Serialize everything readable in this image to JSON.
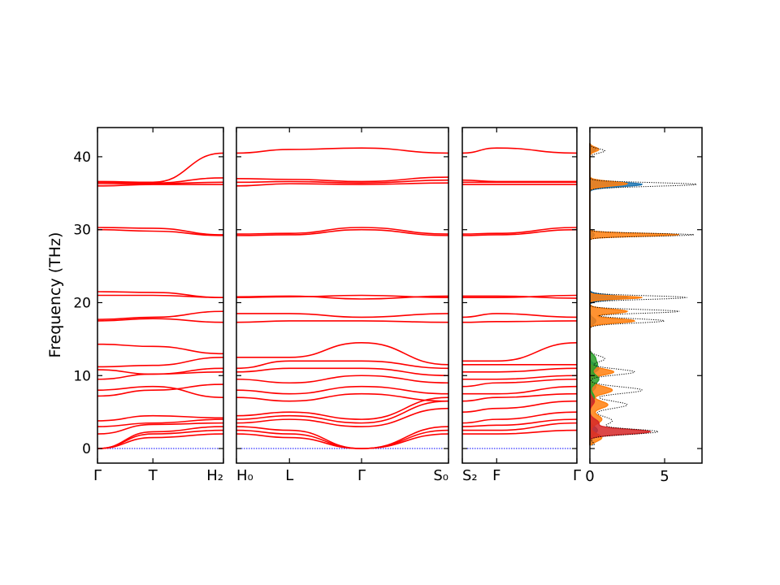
{
  "chart_data": [
    {
      "type": "line",
      "panel": "band-structure",
      "ylabel": "Frequency (THz)",
      "ylim": [
        -2,
        44
      ],
      "yticks": [
        0,
        10,
        20,
        30,
        40
      ],
      "line_color": "#ff0000",
      "zero_line_color": "#0000ff",
      "segments": [
        {
          "xlabels": [
            "Γ",
            "T",
            "H₂"
          ],
          "x": [
            0,
            0.44,
            1.0
          ],
          "bands": [
            [
              0,
              1.5,
              2.0
            ],
            [
              0,
              2.0,
              2.5
            ],
            [
              0,
              2.3,
              3.0
            ],
            [
              2.0,
              3.3,
              3.5
            ],
            [
              3.0,
              3.5,
              4.0
            ],
            [
              3.8,
              4.5,
              4.2
            ],
            [
              7.2,
              8.0,
              8.8
            ],
            [
              8.0,
              8.5,
              7.0
            ],
            [
              9.5,
              10.2,
              10.5
            ],
            [
              10.8,
              10.2,
              11.0
            ],
            [
              11.2,
              11.4,
              12.5
            ],
            [
              14.3,
              14.0,
              13.0
            ],
            [
              17.5,
              17.8,
              17.3
            ],
            [
              17.7,
              18.0,
              18.8
            ],
            [
              21.0,
              21.0,
              20.7
            ],
            [
              21.5,
              21.4,
              20.7
            ],
            [
              30.0,
              29.8,
              29.2
            ],
            [
              30.3,
              30.2,
              29.3
            ],
            [
              36.0,
              36.2,
              36.2
            ],
            [
              36.3,
              36.3,
              36.5
            ],
            [
              36.5,
              36.4,
              37.1
            ],
            [
              36.6,
              36.5,
              40.5
            ]
          ]
        },
        {
          "xlabels": [
            "H₀",
            "L",
            "Γ",
            "S₀"
          ],
          "x": [
            0,
            0.25,
            0.59,
            1.0
          ],
          "bands": [
            [
              2.0,
              1.5,
              0,
              2.0
            ],
            [
              2.5,
              2.0,
              0,
              2.5
            ],
            [
              3.0,
              2.5,
              0,
              3.0
            ],
            [
              3.5,
              4.0,
              3.0,
              5.5
            ],
            [
              4.0,
              4.5,
              3.5,
              6.5
            ],
            [
              4.5,
              5.0,
              4.0,
              7.0
            ],
            [
              7.0,
              6.5,
              7.5,
              6.5
            ],
            [
              8.0,
              7.5,
              8.5,
              7.5
            ],
            [
              9.5,
              9.0,
              10.0,
              9.0
            ],
            [
              10.5,
              11.0,
              11.0,
              10.0
            ],
            [
              11.0,
              12.0,
              12.0,
              11.0
            ],
            [
              12.5,
              12.5,
              14.5,
              11.5
            ],
            [
              17.3,
              17.5,
              17.5,
              17.3
            ],
            [
              18.5,
              18.5,
              18.0,
              18.5
            ],
            [
              20.7,
              20.8,
              21.0,
              20.7
            ],
            [
              20.8,
              20.9,
              20.5,
              20.9
            ],
            [
              29.2,
              29.3,
              30.0,
              29.2
            ],
            [
              29.4,
              29.5,
              30.3,
              29.4
            ],
            [
              36.0,
              36.3,
              36.2,
              36.4
            ],
            [
              36.5,
              36.6,
              36.4,
              36.8
            ],
            [
              37.0,
              36.9,
              36.6,
              37.2
            ],
            [
              40.5,
              41.0,
              41.2,
              40.5
            ]
          ]
        },
        {
          "xlabels": [
            "S₂",
            "F",
            "Γ"
          ],
          "x": [
            0,
            0.3,
            1.0
          ],
          "bands": [
            [
              2.0,
              2.0,
              2.5
            ],
            [
              2.5,
              2.5,
              3.5
            ],
            [
              3.0,
              3.2,
              4.0
            ],
            [
              3.5,
              4.0,
              5.0
            ],
            [
              5.0,
              5.5,
              6.5
            ],
            [
              6.5,
              7.0,
              7.5
            ],
            [
              7.5,
              7.5,
              8.5
            ],
            [
              8.5,
              9.0,
              9.5
            ],
            [
              9.5,
              9.5,
              10.0
            ],
            [
              10.5,
              10.5,
              11.0
            ],
            [
              11.5,
              11.5,
              11.5
            ],
            [
              12.0,
              12.0,
              14.5
            ],
            [
              17.3,
              17.4,
              17.5
            ],
            [
              18.0,
              18.5,
              18.0
            ],
            [
              20.7,
              20.7,
              21.0
            ],
            [
              20.9,
              20.9,
              20.6
            ],
            [
              29.2,
              29.3,
              30.0
            ],
            [
              29.4,
              29.5,
              30.3
            ],
            [
              36.2,
              36.2,
              36.2
            ],
            [
              36.5,
              36.5,
              36.5
            ],
            [
              36.8,
              36.6,
              36.6
            ],
            [
              40.5,
              41.2,
              40.5
            ]
          ]
        }
      ]
    },
    {
      "type": "area",
      "panel": "density-of-states",
      "xlim": [
        0,
        7.5
      ],
      "xticks": [
        0,
        5
      ],
      "ylim": [
        -2,
        44
      ],
      "series": [
        {
          "color": "#1f77b4",
          "peaks": [
            [
              0.2,
              0.6,
              0.4
            ],
            [
              0.5,
              2.5,
              0.5
            ],
            [
              0.4,
              8.5,
              0.5
            ],
            [
              0.6,
              11,
              0.5
            ],
            [
              0.4,
              17.5,
              0.4
            ],
            [
              2.5,
              20.7,
              0.3
            ],
            [
              0.3,
              29.3,
              0.3
            ],
            [
              3.5,
              36.2,
              0.3
            ],
            [
              0.4,
              41,
              0.3
            ]
          ]
        },
        {
          "color": "#ff7f0e",
          "peaks": [
            [
              0.8,
              1.5,
              0.5
            ],
            [
              0.8,
              4,
              0.6
            ],
            [
              1.2,
              6,
              0.5
            ],
            [
              1.5,
              8,
              0.5
            ],
            [
              1.6,
              10.5,
              0.4
            ],
            [
              3.0,
              17.5,
              0.3
            ],
            [
              2.5,
              18.8,
              0.3
            ],
            [
              3.5,
              20.7,
              0.2
            ],
            [
              6.0,
              29.3,
              0.2
            ],
            [
              2.5,
              36.3,
              0.3
            ],
            [
              0.6,
              41,
              0.3
            ]
          ]
        },
        {
          "color": "#2ca02c",
          "peaks": [
            [
              0.3,
              7.0,
              0.6
            ],
            [
              0.6,
              9.5,
              0.6
            ],
            [
              0.5,
              11.5,
              0.5
            ],
            [
              0.3,
              12.5,
              0.4
            ]
          ]
        },
        {
          "color": "#d62728",
          "peaks": [
            [
              4.0,
              2.3,
              0.35
            ],
            [
              0.6,
              3.5,
              0.5
            ],
            [
              0.3,
              6.5,
              0.5
            ]
          ]
        }
      ],
      "total": {
        "style": "dotted",
        "color": "#000000",
        "peaks": [
          [
            0.3,
            0.5,
            0.4
          ],
          [
            4.5,
            2.3,
            0.35
          ],
          [
            1.5,
            3.8,
            0.6
          ],
          [
            2.5,
            6.0,
            0.5
          ],
          [
            3.5,
            8.0,
            0.45
          ],
          [
            3.0,
            10.5,
            0.4
          ],
          [
            1.0,
            12.3,
            0.4
          ],
          [
            5.0,
            17.5,
            0.3
          ],
          [
            6.0,
            18.8,
            0.25
          ],
          [
            6.5,
            20.7,
            0.25
          ],
          [
            7.0,
            29.3,
            0.2
          ],
          [
            7.2,
            36.2,
            0.25
          ],
          [
            1.0,
            40.8,
            0.3
          ]
        ]
      }
    }
  ]
}
